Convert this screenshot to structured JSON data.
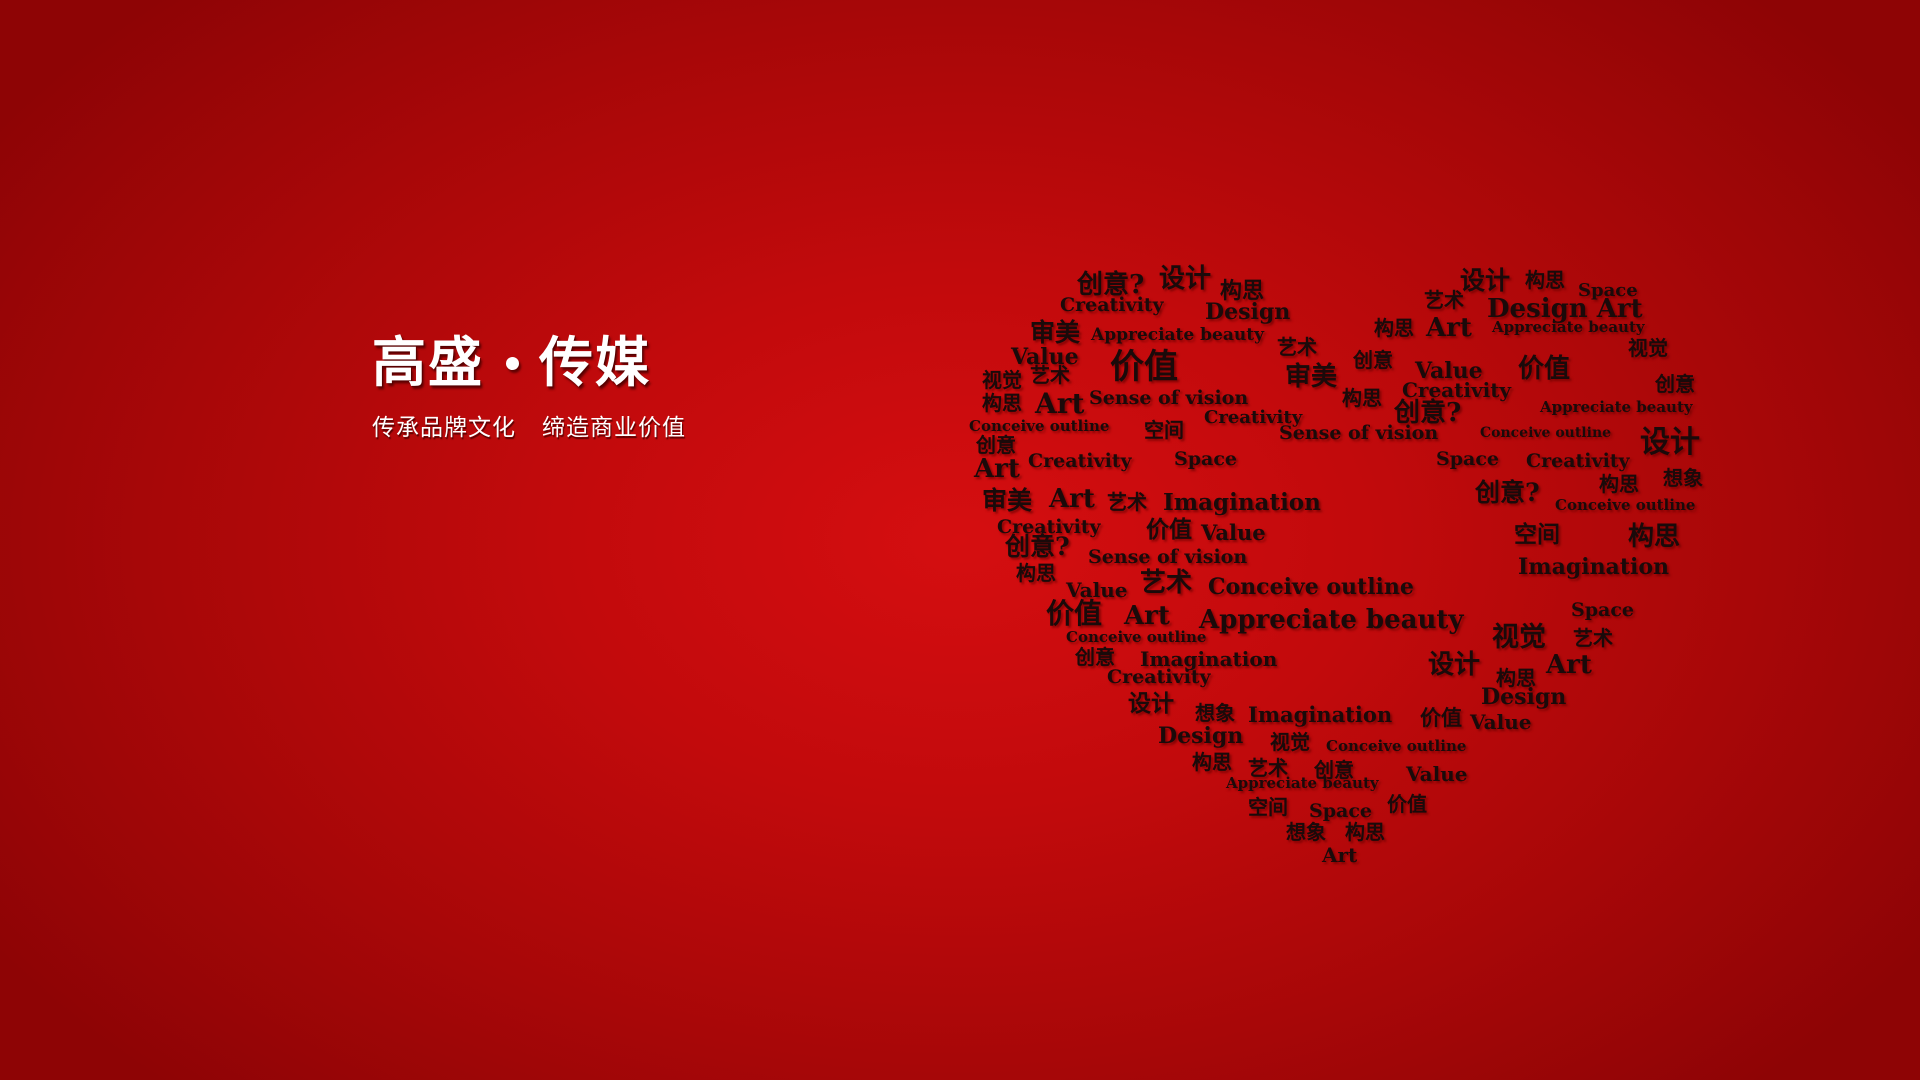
{
  "brand": {
    "title_left": "高盛",
    "title_right": "传媒",
    "slogan_left": "传承品牌文化",
    "slogan_right": "缔造商业价值"
  },
  "heart_words": [
    "创意?",
    "设计",
    "构思",
    "Creativity",
    "Design",
    "设计",
    "构思",
    "Space",
    "艺术",
    "Design Art",
    "构思",
    "Art",
    "Appreciate beauty",
    "审美",
    "Appreciate beauty",
    "艺术",
    "Value",
    "价值",
    "创意",
    "Value",
    "价值",
    "视觉",
    "视觉",
    "艺术",
    "审美",
    "构思",
    "Creativity",
    "创意",
    "Art",
    "Sense of vision",
    "构思",
    "创意?",
    "Appreciate beauty",
    "Creativity",
    "Conceive outline",
    "空间",
    "Sense of vision",
    "Conceive outline",
    "设计",
    "创意",
    "Art",
    "Creativity",
    "Space",
    "Space",
    "Creativity",
    "构思",
    "想象",
    "审美",
    "Art",
    "艺术",
    "Imagination",
    "创意?",
    "Conceive outline",
    "Creativity",
    "价值",
    "Value",
    "空间",
    "构思",
    "创意?",
    "Sense of vision",
    "Imagination",
    "构思",
    "Value",
    "艺术",
    "Conceive outline",
    "Space",
    "价值",
    "Art",
    "Appreciate beauty",
    "视觉",
    "艺术",
    "Conceive outline",
    "Art",
    "创意",
    "Imagination",
    "设计",
    "构思",
    "Creativity",
    "Design",
    "设计",
    "想象",
    "Imagination",
    "价值",
    "Value",
    "Design",
    "视觉",
    "Conceive outline",
    "构思",
    "艺术",
    "创意",
    "Value",
    "Appreciate beauty",
    "空间",
    "Space",
    "价值",
    "想象",
    "构思",
    "Art"
  ]
}
